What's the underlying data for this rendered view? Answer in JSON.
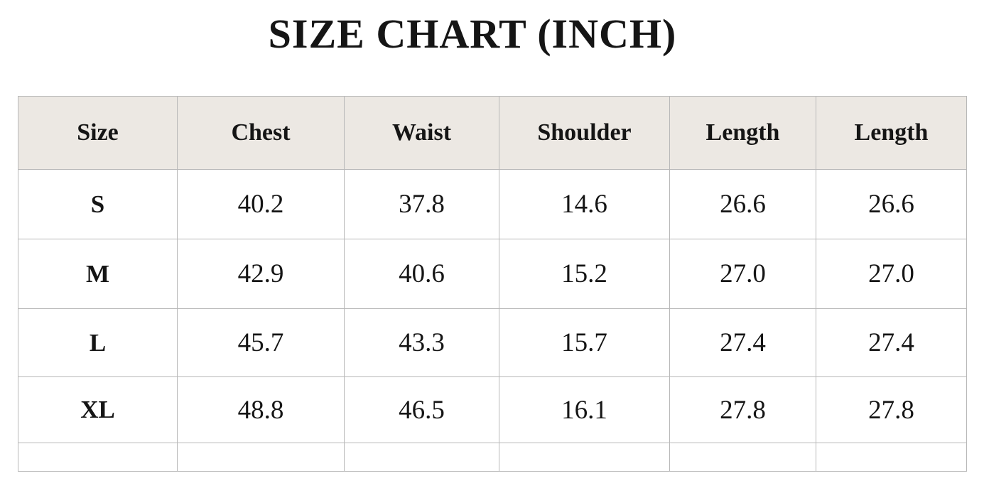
{
  "title": "SIZE CHART (INCH)",
  "headers": [
    "Size",
    "Chest",
    "Waist",
    "Shoulder",
    "Length",
    "Length"
  ],
  "rows": [
    [
      "S",
      "40.2",
      "37.8",
      "14.6",
      "26.6",
      "26.6"
    ],
    [
      "M",
      "42.9",
      "40.6",
      "15.2",
      "27.0",
      "27.0"
    ],
    [
      "L",
      "45.7",
      "43.3",
      "15.7",
      "27.4",
      "27.4"
    ],
    [
      "XL",
      "48.8",
      "46.5",
      "16.1",
      "27.8",
      "27.8"
    ]
  ],
  "colors": {
    "header_bg": "#ece8e3",
    "border": "#b8b8b8",
    "text": "#151515"
  }
}
